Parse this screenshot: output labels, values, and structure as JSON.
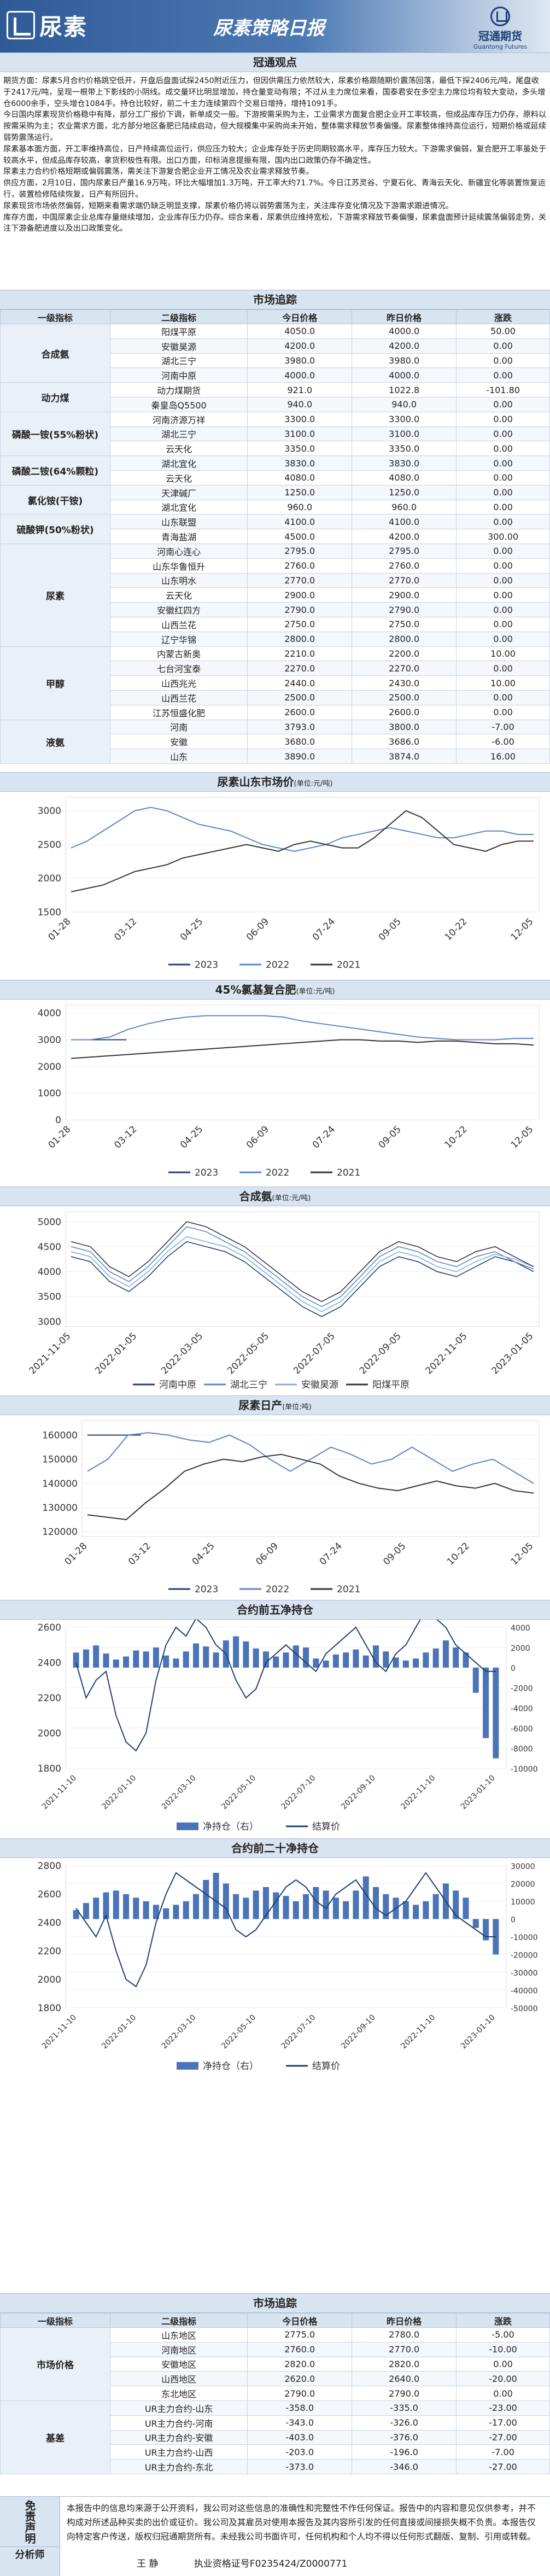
{
  "header": {
    "brand": "尿素",
    "title": "尿素策略日报",
    "logo_cn": "冠通期货",
    "logo_en": "Guantong Futures"
  },
  "sections": {
    "viewpoints": "冠通观点",
    "market1": "市场追踪",
    "market2": "市场追踪"
  },
  "viewpoints": [
    "期货方面：尿素5月合约价格跳空低开，开盘后盘面试探2450附近压力，但因供需压力依然较大，尿素价格跟随期价震荡回落，最低下探2406元/吨，尾盘收于2417元/吨，呈现一根带上下影线的小阴线。成交量环比明显增加，持仓量变动有限；不过从主力席位来看，国泰君安在多空主力席位均有较大变动，多头增仓6000余手，空头增仓1084手。持仓比较好，前二十主力连续第四个交易日增持，增持1091手。",
    "今日国内尿素现货价格稳中有降，部分工厂报价下调，新单成交一般。下游按需采购为主，工业需求方面复合肥企业开工率较高，但成品库存压力仍存，原料以按需采购为主；农业需求方面，北方部分地区备肥已陆续启动，但大规模集中采购尚未开始，整体需求释放节奏偏慢。尿素整体维持高位运行，短期价格或延续弱势震荡运行。",
    "尿素基本面方面，开工率维持高位，日产持续高位运行，供应压力较大；企业库存处于历史同期较高水平，库存压力较大。下游需求偏弱，复合肥开工率虽处于较高水平，但成品库存较高，拿货积极性有限。出口方面，印标消息提振有限，国内出口政策仍存不确定性。",
    "尿素主力合约价格短期或偏弱震荡，需关注下游复合肥企业开工情况及农业需求释放节奏。",
    "供应方面，2月10日，国内尿素日产量16.9万吨，环比大幅增加1.3万吨，开工率大约71.7%。今日江苏灵谷、宁夏石化、青海云天化、新疆宜化等装置恢复运行，装置检修陆续恢复，日产有所回升。",
    "尿素现货市场依然偏弱，短期来看需求端仍缺乏明显支撑，尿素价格仍将以弱势震荡为主，关注库存变化情况及下游需求跟进情况。",
    "库存方面，中国尿素企业总库存量继续增加，企业库存压力仍存。综合来看，尿素供应维持宽松，下游需求释放节奏偏慢，尿素盘面预计延续震荡偏弱走势，关注下游备肥进度以及出口政策变化。"
  ],
  "table1": {
    "headers": [
      "一级指标",
      "二级指标",
      "今日价格",
      "昨日价格",
      "涨跌"
    ],
    "groups": [
      {
        "name": "合成氨",
        "rows": [
          [
            "阳煤平原",
            "4050.0",
            "4000.0",
            "50.00"
          ],
          [
            "安徽昊源",
            "4200.0",
            "4200.0",
            "0.00"
          ],
          [
            "湖北三宁",
            "3980.0",
            "3980.0",
            "0.00"
          ],
          [
            "河南中原",
            "4000.0",
            "4000.0",
            "0.00"
          ]
        ]
      },
      {
        "name": "动力煤",
        "rows": [
          [
            "动力煤期货",
            "921.0",
            "1022.8",
            "-101.80"
          ],
          [
            "秦皇岛Q5500",
            "940.0",
            "940.0",
            "0.00"
          ]
        ]
      },
      {
        "name": "磷酸一铵(55%粉状)",
        "rows": [
          [
            "河南济源万祥",
            "3300.0",
            "3300.0",
            "0.00"
          ],
          [
            "湖北三宁",
            "3100.0",
            "3100.0",
            "0.00"
          ],
          [
            "云天化",
            "3350.0",
            "3350.0",
            "0.00"
          ]
        ]
      },
      {
        "name": "磷酸二铵(64%颗粒)",
        "rows": [
          [
            "湖北宜化",
            "3830.0",
            "3830.0",
            "0.00"
          ],
          [
            "云天化",
            "4080.0",
            "4080.0",
            "0.00"
          ]
        ]
      },
      {
        "name": "氯化铵(干铵)",
        "rows": [
          [
            "天津碱厂",
            "1250.0",
            "1250.0",
            "0.00"
          ],
          [
            "湖北宜化",
            "960.0",
            "960.0",
            "0.00"
          ]
        ]
      },
      {
        "name": "硫酸钾(50%粉状)",
        "rows": [
          [
            "山东联盟",
            "4100.0",
            "4100.0",
            "0.00"
          ],
          [
            "青海盐湖",
            "4500.0",
            "4200.0",
            "300.00"
          ]
        ]
      },
      {
        "name": "尿素",
        "rows": [
          [
            "河南心连心",
            "2795.0",
            "2795.0",
            "0.00"
          ],
          [
            "山东华鲁恒升",
            "2760.0",
            "2760.0",
            "0.00"
          ],
          [
            "山东明水",
            "2770.0",
            "2770.0",
            "0.00"
          ],
          [
            "云天化",
            "2900.0",
            "2900.0",
            "0.00"
          ],
          [
            "安徽红四方",
            "2790.0",
            "2790.0",
            "0.00"
          ],
          [
            "山西兰花",
            "2750.0",
            "2750.0",
            "0.00"
          ],
          [
            "辽宁华锦",
            "2800.0",
            "2800.0",
            "0.00"
          ]
        ]
      },
      {
        "name": "甲醇",
        "rows": [
          [
            "内蒙古新奥",
            "2210.0",
            "2200.0",
            "10.00"
          ],
          [
            "七台河宝泰",
            "2270.0",
            "2270.0",
            "0.00"
          ],
          [
            "山西兆光",
            "2440.0",
            "2430.0",
            "10.00"
          ],
          [
            "山西兰花",
            "2500.0",
            "2500.0",
            "0.00"
          ],
          [
            "江苏恒盛化肥",
            "2600.0",
            "2600.0",
            "0.00"
          ]
        ]
      },
      {
        "name": "液氨",
        "rows": [
          [
            "河南",
            "3793.0",
            "3800.0",
            "-7.00"
          ],
          [
            "安徽",
            "3680.0",
            "3686.0",
            "-6.00"
          ],
          [
            "山东",
            "3890.0",
            "3874.0",
            "16.00"
          ]
        ]
      }
    ]
  },
  "chart1": {
    "title": "尿素山东市场价",
    "unit": "(单位:元/吨)",
    "legend": [
      "2023",
      "2022",
      "2021"
    ],
    "chart_data": {
      "type": "line",
      "x_ticks": [
        "01-28",
        "03-12",
        "04-25",
        "06-09",
        "07-24",
        "09-05",
        "10-22",
        "12-05"
      ],
      "yticks": [
        1500,
        2000,
        2500,
        3000
      ],
      "ylim": [
        1500,
        3200
      ],
      "series": [
        {
          "name": "2023",
          "values": []
        },
        {
          "name": "2022",
          "values": [
            2450,
            2550,
            2700,
            2850,
            3000,
            3050,
            3000,
            2900,
            2800,
            2750,
            2700,
            2600,
            2500,
            2450,
            2400,
            2450,
            2500,
            2600,
            2650,
            2700,
            2750,
            2700,
            2650,
            2600,
            2600,
            2650,
            2700,
            2700,
            2650,
            2650
          ]
        },
        {
          "name": "2021",
          "values": [
            1800,
            1850,
            1900,
            2000,
            2100,
            2150,
            2200,
            2300,
            2350,
            2400,
            2450,
            2500,
            2450,
            2400,
            2500,
            2550,
            2500,
            2450,
            2450,
            2600,
            2800,
            3000,
            2900,
            2700,
            2500,
            2450,
            2400,
            2500,
            2550,
            2550
          ]
        }
      ]
    }
  },
  "chart2": {
    "title": "45%氯基复合肥",
    "unit": "(单位:元/吨)",
    "legend": [
      "2023",
      "2022",
      "2021"
    ],
    "chart_data": {
      "type": "line",
      "x_ticks": [
        "01-28",
        "03-12",
        "04-25",
        "06-09",
        "07-24",
        "09-05",
        "10-22",
        "12-05"
      ],
      "yticks": [
        0,
        1000,
        2000,
        3000,
        4000
      ],
      "ylim": [
        0,
        4300
      ],
      "series": [
        {
          "name": "2023",
          "values": [
            3000,
            3000,
            3000,
            3000
          ]
        },
        {
          "name": "2022",
          "values": [
            3000,
            3000,
            3100,
            3400,
            3600,
            3750,
            3850,
            3900,
            3900,
            3900,
            3900,
            3850,
            3700,
            3600,
            3500,
            3400,
            3300,
            3200,
            3100,
            3050,
            3000,
            3000,
            3000,
            3050,
            3050
          ]
        },
        {
          "name": "2021",
          "values": [
            2300,
            2350,
            2400,
            2450,
            2500,
            2550,
            2600,
            2650,
            2700,
            2750,
            2800,
            2850,
            2900,
            2950,
            3000,
            3000,
            2950,
            2950,
            2900,
            2950,
            2950,
            2900,
            2850,
            2850,
            2800
          ]
        }
      ]
    }
  },
  "chart3": {
    "title": "合成氨",
    "unit": "(单位:元/吨)",
    "legend": [
      "河南中原",
      "湖北三宁",
      "安徽昊源",
      "阳煤平原"
    ],
    "chart_data": {
      "type": "line",
      "x_ticks": [
        "2021-11-05",
        "2022-01-05",
        "2022-03-05",
        "2022-05-05",
        "2022-07-05",
        "2022-09-05",
        "2022-11-05",
        "2023-01-05"
      ],
      "yticks": [
        3000,
        3500,
        4000,
        4500,
        5000
      ],
      "ylim": [
        2900,
        5200
      ],
      "series": [
        {
          "name": "河南中原",
          "values": [
            4300,
            4200,
            3800,
            3600,
            3900,
            4300,
            4600,
            4500,
            4400,
            4200,
            3900,
            3600,
            3300,
            3100,
            3300,
            3700,
            4100,
            4300,
            4200,
            4000,
            3900,
            4100,
            4300,
            4200,
            4000
          ]
        },
        {
          "name": "湖北三宁",
          "values": [
            4500,
            4400,
            4000,
            3800,
            4100,
            4500,
            4900,
            4800,
            4600,
            4400,
            4100,
            3800,
            3500,
            3300,
            3500,
            3900,
            4300,
            4500,
            4400,
            4200,
            4100,
            4300,
            4400,
            4200,
            4050
          ]
        },
        {
          "name": "安徽昊源",
          "values": [
            4400,
            4300,
            3900,
            3700,
            4000,
            4400,
            4700,
            4600,
            4500,
            4300,
            4000,
            3700,
            3400,
            3200,
            3400,
            3800,
            4200,
            4400,
            4300,
            4100,
            4000,
            4200,
            4350,
            4250,
            4100
          ]
        },
        {
          "name": "阳煤平原",
          "values": [
            4600,
            4500,
            4100,
            3900,
            4200,
            4600,
            5000,
            4900,
            4700,
            4500,
            4200,
            3900,
            3600,
            3400,
            3600,
            4000,
            4400,
            4600,
            4500,
            4300,
            4200,
            4400,
            4500,
            4300,
            4100
          ]
        }
      ]
    }
  },
  "chart4": {
    "title": "尿素日产",
    "unit": "(单位:吨)",
    "legend": [
      "2023",
      "2022",
      "2021"
    ],
    "chart_data": {
      "type": "line",
      "x_ticks": [
        "01-28",
        "03-12",
        "04-25",
        "06-09",
        "07-24",
        "09-05",
        "10-22",
        "12-05"
      ],
      "yticks": [
        120000,
        130000,
        140000,
        150000,
        160000
      ],
      "ylim": [
        118000,
        166000
      ],
      "series": [
        {
          "name": "2023",
          "values": [
            160000,
            160000,
            160000
          ]
        },
        {
          "name": "2022",
          "values": [
            145000,
            150000,
            160000,
            161000,
            160000,
            158000,
            157000,
            160000,
            156000,
            150000,
            145000,
            150000,
            155000,
            152000,
            148000,
            150000,
            155000,
            150000,
            145000,
            148000,
            150000,
            145000,
            140000
          ]
        },
        {
          "name": "2021",
          "values": [
            127000,
            126000,
            125000,
            132000,
            138000,
            145000,
            148000,
            150000,
            149000,
            151000,
            152000,
            150000,
            148000,
            143000,
            140000,
            138000,
            137000,
            139000,
            141000,
            139000,
            138000,
            140000,
            137000,
            136000
          ]
        }
      ]
    }
  },
  "chart5": {
    "title": "合约前五净持仓",
    "legend": [
      "净持仓（右）",
      "结算价"
    ],
    "chart_data": {
      "type": "bar",
      "x_ticks": [
        "2021-11-10",
        "2022-01-10",
        "2022-03-10",
        "2022-05-10",
        "2022-07-10",
        "2022-09-10",
        "2022-11-10",
        "2023-01-10"
      ],
      "yticks_left": [
        1800,
        2000,
        2200,
        2400,
        2600
      ],
      "yticks_right": [
        -10000,
        -8000,
        -6000,
        -4000,
        -2000,
        0,
        2000,
        4000
      ],
      "series": [
        {
          "name": "净持仓（右）",
          "values": [
            1500,
            1800,
            2200,
            1400,
            800,
            1100,
            1700,
            1600,
            2000,
            1200,
            900,
            1600,
            2400,
            2100,
            1500,
            2700,
            3100,
            2600,
            1900,
            1600,
            1100,
            1500,
            2200,
            2000,
            900,
            700,
            1300,
            1500,
            1800,
            1200,
            2200,
            1600,
            1000,
            700,
            900,
            1500,
            1900,
            2700,
            2000,
            1500,
            -2500,
            -7000,
            -9000
          ]
        },
        {
          "name": "结算价",
          "values": [
            2400,
            2200,
            2300,
            2350,
            2100,
            1950,
            1900,
            2000,
            2300,
            2500,
            2600,
            2550,
            2650,
            2600,
            2500,
            2450,
            2300,
            2200,
            2250,
            2400,
            2450,
            2500,
            2450,
            2400,
            2350,
            2450,
            2500,
            2550,
            2600,
            2500,
            2400,
            2350,
            2450,
            2500,
            2600,
            2700,
            2650,
            2600,
            2500,
            2450,
            2400,
            2350,
            2350
          ]
        }
      ]
    }
  },
  "chart6": {
    "title": "合约前二十净持仓",
    "legend": [
      "净持仓（右）",
      "结算价"
    ],
    "chart_data": {
      "type": "bar",
      "x_ticks": [
        "2021-11-10",
        "2022-01-10",
        "2022-03-10",
        "2022-05-10",
        "2022-07-10",
        "2022-09-10",
        "2022-11-10",
        "2023-01-10"
      ],
      "yticks_left": [
        1800,
        2000,
        2200,
        2400,
        2600,
        2800
      ],
      "yticks_right": [
        -50000,
        -40000,
        -30000,
        -20000,
        -10000,
        0,
        10000,
        20000,
        30000
      ],
      "series": [
        {
          "name": "净持仓（右）",
          "values": [
            5000,
            9000,
            12000,
            15000,
            16000,
            14000,
            12000,
            10000,
            8000,
            6000,
            8000,
            10000,
            14000,
            22000,
            26000,
            20000,
            14000,
            12000,
            16000,
            18000,
            15000,
            13000,
            10000,
            14000,
            18000,
            16000,
            12000,
            10000,
            16000,
            24000,
            18000,
            14000,
            12000,
            10000,
            8000,
            10000,
            14000,
            20000,
            16000,
            12000,
            -5000,
            -12000,
            -20000
          ]
        },
        {
          "name": "结算价",
          "values": [
            2500,
            2400,
            2300,
            2450,
            2200,
            2000,
            1950,
            2100,
            2400,
            2600,
            2750,
            2700,
            2650,
            2600,
            2550,
            2500,
            2350,
            2300,
            2350,
            2450,
            2550,
            2650,
            2700,
            2650,
            2550,
            2500,
            2600,
            2650,
            2700,
            2600,
            2500,
            2450,
            2500,
            2550,
            2650,
            2750,
            2650,
            2550,
            2450,
            2400,
            2350,
            2300,
            2300
          ]
        }
      ]
    }
  },
  "table2": {
    "headers": [
      "一级指标",
      "二级指标",
      "今日价格",
      "昨日价格",
      "涨跌"
    ],
    "groups": [
      {
        "name": "市场价格",
        "rows": [
          [
            "山东地区",
            "2775.0",
            "2780.0",
            "-5.00"
          ],
          [
            "河南地区",
            "2760.0",
            "2770.0",
            "-10.00"
          ],
          [
            "安徽地区",
            "2820.0",
            "2820.0",
            "0.00"
          ],
          [
            "山西地区",
            "2620.0",
            "2640.0",
            "-20.00"
          ],
          [
            "东北地区",
            "2790.0",
            "2790.0",
            "0.00"
          ]
        ]
      },
      {
        "name": "基差",
        "rows": [
          [
            "UR主力合约-山东",
            "-358.0",
            "-335.0",
            "-23.00"
          ],
          [
            "UR主力合约-河南",
            "-343.0",
            "-326.0",
            "-17.00"
          ],
          [
            "UR主力合约-安徽",
            "-403.0",
            "-376.0",
            "-27.00"
          ],
          [
            "UR主力合约-山西",
            "-203.0",
            "-196.0",
            "-7.00"
          ],
          [
            "UR主力合约-东北",
            "-373.0",
            "-346.0",
            "-27.00"
          ]
        ]
      }
    ]
  },
  "disclaimer": {
    "label": "免责声明",
    "text": "本报告中的信息均来源于公开资料，我公司对这些信息的准确性和完整性不作任何保证。报告中的内容和意见仅供参考，并不构成对所述品种买卖的出价或征价。我公司及其雇员对使用本报告及其内容所引发的任何直接或间接损失概不负责。本报告仅向特定客户传送，版权归冠通期货所有。未经我公司书面许可，任何机构和个人均不得以任何形式翻版、复制、引用或转载。"
  },
  "analyst": {
    "label": "分析师",
    "name": "王  静",
    "cert": "执业资格证号F0235424/Z0000771"
  },
  "colors": {
    "header_blue": "#2f5a96",
    "section_bg": "#d9e4f1",
    "line_2023": "#1f3f73",
    "line_2022": "#5b84c8",
    "line_2021": "#333333",
    "bar": "#4a73b8"
  }
}
